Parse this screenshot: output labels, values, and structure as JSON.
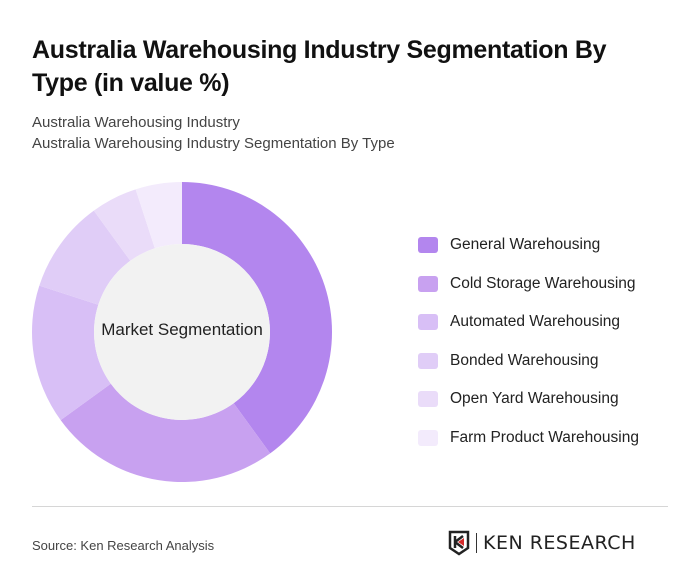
{
  "title": "Australia Warehousing Industry Segmentation By Type (in value %)",
  "subtitle_1": "Australia Warehousing Industry",
  "subtitle_2": "Australia Warehousing Industry Segmentation By Type",
  "chart_data": {
    "type": "donut",
    "center_label": "Market Segmentation",
    "legend_position": "right",
    "categories": [
      "General Warehousing",
      "Cold Storage Warehousing",
      "Automated Warehousing",
      "Bonded Warehousing",
      "Open Yard Warehousing",
      "Farm Product Warehousing"
    ],
    "values": [
      40,
      25,
      15,
      10,
      5,
      5
    ],
    "colors": [
      "#b386ee",
      "#c8a1f0",
      "#d8bff6",
      "#e0cdf7",
      "#eadcf9",
      "#f3ebfc"
    ]
  },
  "source": "Source: Ken Research Analysis",
  "logo": {
    "text": "KEN RESEARCH",
    "icon": "ken-research-k-shield-icon"
  }
}
